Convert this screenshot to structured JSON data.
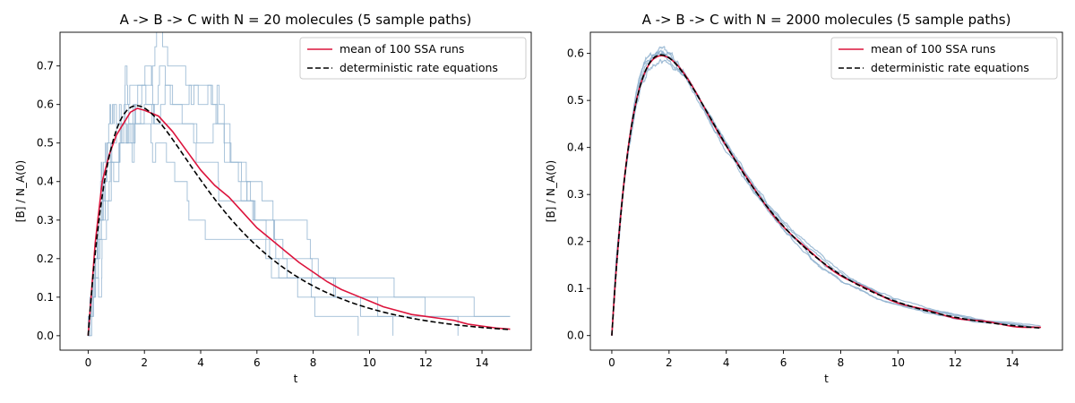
{
  "chart_data": [
    {
      "type": "line",
      "title": "A -> B -> C with N = 20 molecules (5 sample paths)",
      "xlabel": "t",
      "ylabel": "[B] / N_A(0)",
      "xlim": [
        -1.0,
        15.75
      ],
      "ylim": [
        -0.0375,
        0.7875
      ],
      "xticks": [
        0,
        2,
        4,
        6,
        8,
        10,
        12,
        14
      ],
      "yticks": [
        0.0,
        0.1,
        0.2,
        0.3,
        0.4,
        0.5,
        0.6,
        0.7
      ],
      "ytick_labels": [
        "0.0",
        "0.1",
        "0.2",
        "0.3",
        "0.4",
        "0.5",
        "0.6",
        "0.7"
      ],
      "grid": false,
      "legend_position": "top-right",
      "legend": [
        {
          "label": "mean of 100 SSA runs",
          "color": "#dc143c",
          "style": "solid"
        },
        {
          "label": "deterministic rate equations",
          "color": "#000000",
          "style": "dashed"
        }
      ],
      "colors": {
        "mean": "#dc143c",
        "deterministic": "#000000",
        "sample_paths": "#8fb1cf"
      },
      "sample_paths_count": 5,
      "sample_path_seed": 7,
      "deterministic": {
        "k1": 1.0,
        "k2": 0.3,
        "t_max": 15
      },
      "mean_series": {
        "x": [
          0,
          0.25,
          0.5,
          0.75,
          1.0,
          1.25,
          1.5,
          1.75,
          2.0,
          2.5,
          3.0,
          3.5,
          4.0,
          4.5,
          5.0,
          5.5,
          6.0,
          6.5,
          7.0,
          7.5,
          8.0,
          8.5,
          9.0,
          9.5,
          10.0,
          10.5,
          11.0,
          11.5,
          12.0,
          12.5,
          13.0,
          13.5,
          14.0,
          14.5,
          15.0
        ],
        "y": [
          0.0,
          0.24,
          0.4,
          0.47,
          0.52,
          0.55,
          0.58,
          0.59,
          0.585,
          0.57,
          0.53,
          0.48,
          0.43,
          0.39,
          0.36,
          0.32,
          0.28,
          0.25,
          0.22,
          0.19,
          0.165,
          0.14,
          0.12,
          0.105,
          0.09,
          0.075,
          0.065,
          0.055,
          0.05,
          0.045,
          0.04,
          0.03,
          0.025,
          0.02,
          0.017
        ]
      }
    },
    {
      "type": "line",
      "title": "A -> B -> C with N = 2000 molecules (5 sample paths)",
      "xlabel": "t",
      "ylabel": "[B] / N_A(0)",
      "xlim": [
        -0.75,
        15.75
      ],
      "ylim": [
        -0.031,
        0.645
      ],
      "xticks": [
        0,
        2,
        4,
        6,
        8,
        10,
        12,
        14
      ],
      "yticks": [
        0.0,
        0.1,
        0.2,
        0.3,
        0.4,
        0.5,
        0.6
      ],
      "ytick_labels": [
        "0.0",
        "0.1",
        "0.2",
        "0.3",
        "0.4",
        "0.5",
        "0.6"
      ],
      "grid": false,
      "legend_position": "top-right",
      "legend": [
        {
          "label": "mean of 100 SSA runs",
          "color": "#dc143c",
          "style": "solid"
        },
        {
          "label": "deterministic rate equations",
          "color": "#000000",
          "style": "dashed"
        }
      ],
      "colors": {
        "mean": "#dc143c",
        "deterministic": "#000000",
        "sample_paths": "#8fb1cf"
      },
      "sample_paths_count": 5,
      "sample_path_seed": 11,
      "deterministic": {
        "k1": 1.0,
        "k2": 0.3,
        "t_max": 15
      },
      "mean_series": null
    }
  ]
}
